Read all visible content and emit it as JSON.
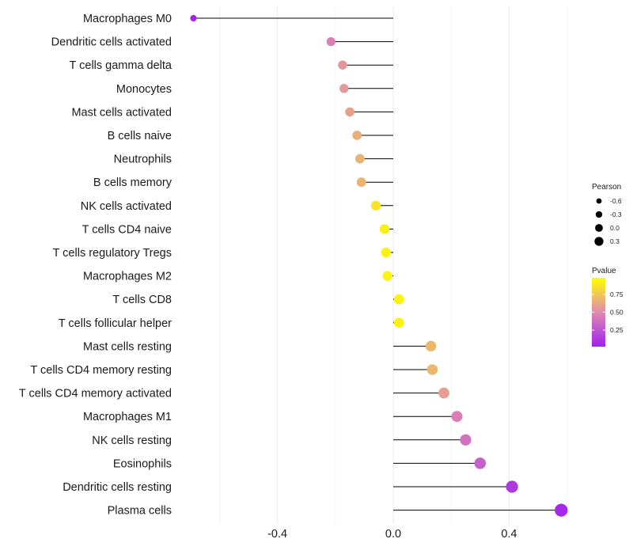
{
  "chart_data": {
    "type": "lollipop",
    "categories": [
      "Macrophages M0",
      "Dendritic cells activated",
      "T cells gamma delta",
      "Monocytes",
      "Mast cells activated",
      "B cells naive",
      "Neutrophils",
      "B cells memory",
      "NK cells activated",
      "T cells CD4 naive",
      "T cells regulatory  Tregs ",
      "Macrophages M2",
      "T cells CD8",
      "T cells follicular helper",
      "Mast cells resting",
      "T cells CD4 memory resting",
      "T cells CD4 memory activated",
      "Macrophages M1",
      "NK cells resting",
      "Eosinophils",
      "Dendritic cells resting",
      "Plasma cells"
    ],
    "values": [
      -0.69,
      -0.215,
      -0.175,
      -0.17,
      -0.15,
      -0.125,
      -0.115,
      -0.11,
      -0.06,
      -0.03,
      -0.025,
      -0.02,
      0.02,
      0.02,
      0.13,
      0.135,
      0.175,
      0.22,
      0.25,
      0.3,
      0.41,
      0.58
    ],
    "pvalues": [
      0.02,
      0.45,
      0.55,
      0.56,
      0.6,
      0.65,
      0.67,
      0.68,
      0.88,
      0.93,
      0.94,
      0.95,
      0.95,
      0.95,
      0.7,
      0.69,
      0.58,
      0.45,
      0.38,
      0.3,
      0.12,
      0.04
    ],
    "xlim": [
      -0.69,
      0.6
    ],
    "xticks": [
      -0.4,
      0.0,
      0.4
    ],
    "xtick_labels": [
      "-0.4",
      "0.0",
      "0.4"
    ],
    "title": "",
    "xlabel": "",
    "ylabel": "",
    "grid": "vertical",
    "legend": {
      "position": "right",
      "size_title": "Pearson",
      "size_values": [
        -0.6,
        -0.3,
        0.0,
        0.3
      ],
      "size_labels": [
        "-0.6",
        "-0.3",
        "0.0",
        "0.3"
      ],
      "color_title": "Pvalue",
      "color_values": [
        0.25,
        0.5,
        0.75
      ],
      "color_labels": [
        "0.25",
        "0.50",
        "0.75"
      ],
      "color_low": "#a020f0",
      "color_mid": "#e08ab0",
      "color_high": "#ffff00"
    }
  }
}
